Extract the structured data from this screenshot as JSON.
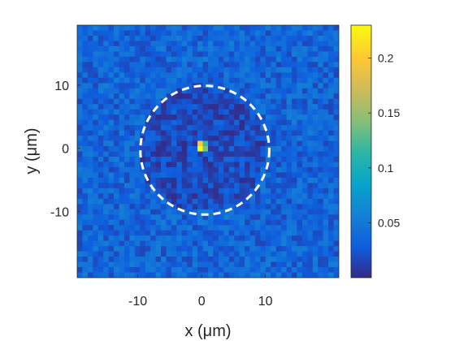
{
  "chart_data": {
    "type": "heatmap",
    "title": "",
    "xlabel": "x (μm)",
    "ylabel": "y (μm)",
    "xlim": [
      -19.5,
      21.5
    ],
    "ylim": [
      -20.5,
      19.5
    ],
    "x_ticks": [
      -10,
      0,
      10
    ],
    "y_ticks": [
      10,
      0,
      -10
    ],
    "x_tick_labels": [
      "-10",
      "0",
      "10"
    ],
    "y_tick_labels": [
      "10",
      "0",
      "-10"
    ],
    "grid": false,
    "colormap": "parula",
    "colorbar": {
      "range": [
        0.0,
        0.23
      ],
      "ticks": [
        0.05,
        0.1,
        0.15,
        0.2
      ],
      "tick_labels": [
        "0.05",
        "0.1",
        "0.15",
        "0.2"
      ]
    },
    "grid_size": {
      "cols": 50,
      "rows": 48
    },
    "background_level": 0.035,
    "background_noise": 0.02,
    "inner_region": {
      "center": [
        0,
        0
      ],
      "radius": 10,
      "level": 0.018
    },
    "peak": [
      {
        "x": -0.4,
        "y": 0.6,
        "value": 0.2
      },
      {
        "x": 0.4,
        "y": 0.6,
        "value": 0.12
      },
      {
        "x": -0.4,
        "y": -0.3,
        "value": 0.23
      },
      {
        "x": 0.4,
        "y": -0.3,
        "value": 0.14
      }
    ],
    "annotation_circle": {
      "center_x": 0.5,
      "center_y": -0.3,
      "radius": 10.1,
      "style": "dashed",
      "color": "#ffffff"
    }
  }
}
